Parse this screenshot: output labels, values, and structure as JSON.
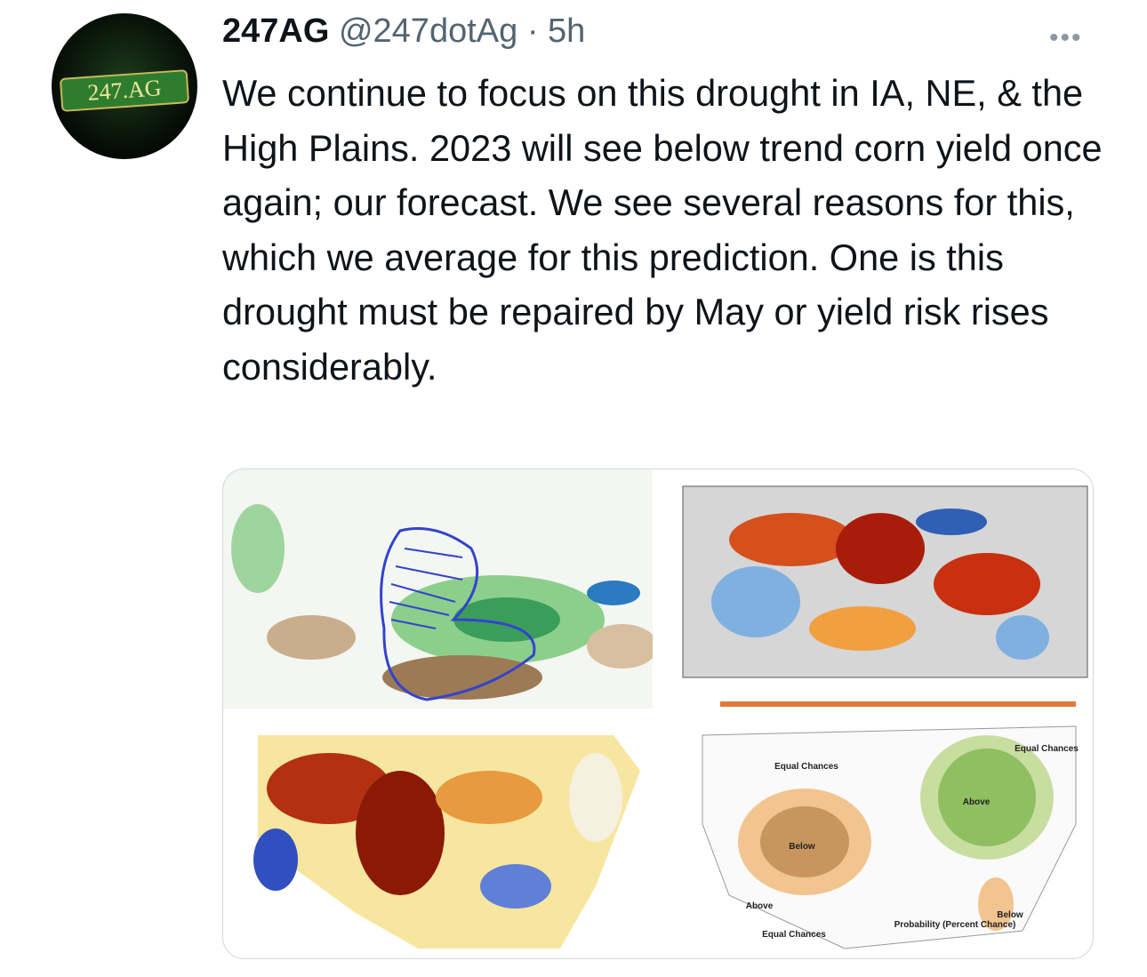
{
  "author": {
    "name": "247AG",
    "handle": "@247dotAg",
    "separator": "·",
    "time": "5h",
    "avatar_text": "247.AG"
  },
  "tweet": {
    "text": "We continue to focus on this drought in IA, NE, & the High Plains. 2023 will see below trend corn yield once again; our forecast.  We see several reasons for this, which we average for this prediction.  One is this drought must be repaired by May or yield risk rises considerably."
  },
  "media": {
    "outlook_map": {
      "labels": [
        "Equal Chances",
        "Below",
        "Above",
        "Equal Chances",
        "Above",
        "Equal Chances",
        "Below",
        "Probability (Percent Chance)"
      ]
    }
  }
}
